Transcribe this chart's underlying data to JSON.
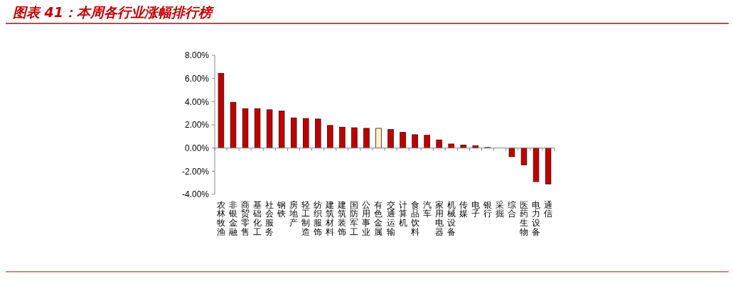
{
  "chart_data": {
    "type": "bar",
    "title": "图表 41：本周各行业涨幅排行榜",
    "categories": [
      "农林牧渔",
      "非银金融",
      "商贸零售",
      "基础化工",
      "社会服务",
      "钢铁",
      "房地产",
      "轻工制造",
      "纺织服饰",
      "建筑材料",
      "建筑装饰",
      "国防军工",
      "公用事业",
      "有色金属",
      "交通运输",
      "计算机",
      "食品饮料",
      "汽车",
      "家用电器",
      "机械设备",
      "传媒",
      "电子",
      "银行",
      "采掘",
      "综合",
      "医药生物",
      "电力设备",
      "通信"
    ],
    "values": [
      6.45,
      3.95,
      3.4,
      3.4,
      3.3,
      3.2,
      2.6,
      2.55,
      2.5,
      1.95,
      1.8,
      1.75,
      1.7,
      1.7,
      1.6,
      1.35,
      1.15,
      1.1,
      0.7,
      0.35,
      0.25,
      0.2,
      0.05,
      0,
      -0.75,
      -1.45,
      -2.9,
      -3.1
    ],
    "colors": [
      "#c00000",
      "#c00000",
      "#c00000",
      "#c00000",
      "#c00000",
      "#c00000",
      "#c00000",
      "#c00000",
      "#c00000",
      "#c00000",
      "#c00000",
      "#c00000",
      "#c00000",
      "#fff2cc",
      "#c00000",
      "#c00000",
      "#c00000",
      "#c00000",
      "#c00000",
      "#c00000",
      "#c00000",
      "#c00000",
      "#c00000",
      "#c00000",
      "#c00000",
      "#c00000",
      "#c00000",
      "#c00000"
    ],
    "ylim": [
      -4,
      8
    ],
    "yticks": [
      {
        "value": -4,
        "label": "-4.00%"
      },
      {
        "value": -2,
        "label": "-2.00%"
      },
      {
        "value": 0,
        "label": "0.00%"
      },
      {
        "value": 2,
        "label": "2.00%"
      },
      {
        "value": 4,
        "label": "4.00%"
      },
      {
        "value": 6,
        "label": "6.00%"
      },
      {
        "value": 8,
        "label": "8.00%"
      }
    ]
  }
}
